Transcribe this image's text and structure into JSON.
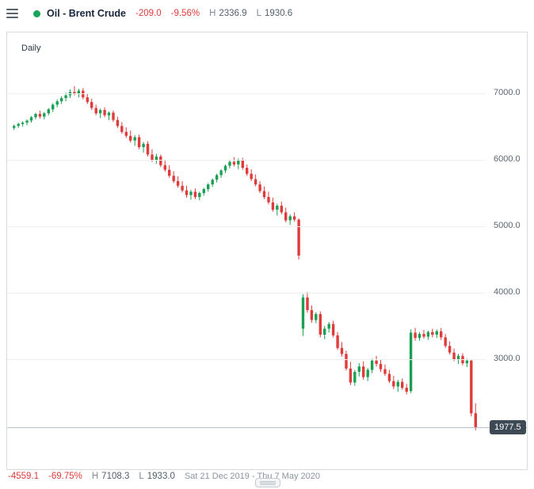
{
  "header": {
    "title": "Oil - Brent Crude",
    "change": "-209.0",
    "change_pct": "-9.56%",
    "high_label": "H",
    "high": "2336.9",
    "low_label": "L",
    "low": "1930.6"
  },
  "chart": {
    "timeframe_label": "Daily",
    "last_price_label": "1977.5",
    "y_axis": {
      "ticks": [
        "7000.0",
        "6000.0",
        "5000.0",
        "4000.0",
        "3000.0"
      ]
    }
  },
  "footer": {
    "change": "-4559.1",
    "change_pct": "-69.75%",
    "high_label": "H",
    "high": "7108.3",
    "low_label": "L",
    "low": "1933.0",
    "date_range": "Sat 21 Dec 2019 - Thu 7 May 2020"
  },
  "colors": {
    "up": "#1aa053",
    "down": "#e03b3b",
    "accent_red_text": "#e03b3b",
    "badge_bg": "#3d4955",
    "status_dot": "#17a558"
  },
  "chart_data": {
    "type": "candlestick",
    "title": "Oil - Brent Crude, Daily",
    "x_range": "Sat 21 Dec 2019 - Thu 7 May 2020",
    "ylim": [
      1900,
      7400
    ],
    "y_ticks": [
      7000,
      6000,
      5000,
      4000,
      3000
    ],
    "range_high": 7108.3,
    "range_low": 1933.0,
    "last_price": 1977.5,
    "candles": [
      [
        6480,
        6530,
        6450,
        6510
      ],
      [
        6510,
        6560,
        6480,
        6540
      ],
      [
        6540,
        6580,
        6500,
        6560
      ],
      [
        6560,
        6610,
        6520,
        6590
      ],
      [
        6590,
        6660,
        6560,
        6640
      ],
      [
        6640,
        6710,
        6610,
        6690
      ],
      [
        6690,
        6740,
        6620,
        6650
      ],
      [
        6650,
        6720,
        6610,
        6700
      ],
      [
        6700,
        6780,
        6670,
        6760
      ],
      [
        6760,
        6850,
        6720,
        6830
      ],
      [
        6830,
        6910,
        6790,
        6880
      ],
      [
        6880,
        6960,
        6840,
        6930
      ],
      [
        6930,
        7010,
        6880,
        6970
      ],
      [
        6970,
        7060,
        6930,
        7020
      ],
      [
        7020,
        7108,
        6970,
        7000
      ],
      [
        7000,
        7070,
        6940,
        7040
      ],
      [
        7040,
        7080,
        6910,
        6940
      ],
      [
        6940,
        6990,
        6840,
        6870
      ],
      [
        6870,
        6920,
        6750,
        6780
      ],
      [
        6780,
        6830,
        6670,
        6700
      ],
      [
        6700,
        6770,
        6630,
        6750
      ],
      [
        6750,
        6790,
        6640,
        6670
      ],
      [
        6670,
        6730,
        6600,
        6710
      ],
      [
        6710,
        6740,
        6570,
        6600
      ],
      [
        6600,
        6650,
        6480,
        6510
      ],
      [
        6510,
        6570,
        6390,
        6420
      ],
      [
        6420,
        6490,
        6330,
        6360
      ],
      [
        6360,
        6440,
        6260,
        6290
      ],
      [
        6290,
        6370,
        6210,
        6340
      ],
      [
        6340,
        6380,
        6160,
        6190
      ],
      [
        6190,
        6270,
        6110,
        6240
      ],
      [
        6240,
        6280,
        6050,
        6080
      ],
      [
        6080,
        6160,
        5970,
        6000
      ],
      [
        6000,
        6090,
        5940,
        6050
      ],
      [
        6050,
        6080,
        5890,
        5920
      ],
      [
        5920,
        5990,
        5820,
        5850
      ],
      [
        5850,
        5920,
        5730,
        5760
      ],
      [
        5760,
        5830,
        5650,
        5680
      ],
      [
        5680,
        5750,
        5580,
        5610
      ],
      [
        5610,
        5680,
        5510,
        5540
      ],
      [
        5540,
        5610,
        5430,
        5470
      ],
      [
        5470,
        5550,
        5400,
        5520
      ],
      [
        5520,
        5570,
        5410,
        5440
      ],
      [
        5440,
        5520,
        5390,
        5500
      ],
      [
        5500,
        5580,
        5460,
        5560
      ],
      [
        5560,
        5650,
        5520,
        5630
      ],
      [
        5630,
        5720,
        5590,
        5700
      ],
      [
        5700,
        5790,
        5660,
        5770
      ],
      [
        5770,
        5860,
        5730,
        5840
      ],
      [
        5840,
        5930,
        5800,
        5910
      ],
      [
        5910,
        6000,
        5870,
        5970
      ],
      [
        5970,
        6040,
        5900,
        5930
      ],
      [
        5930,
        6020,
        5860,
        5990
      ],
      [
        5990,
        6030,
        5850,
        5880
      ],
      [
        5880,
        5930,
        5760,
        5790
      ],
      [
        5790,
        5860,
        5680,
        5710
      ],
      [
        5710,
        5780,
        5600,
        5630
      ],
      [
        5630,
        5680,
        5500,
        5530
      ],
      [
        5530,
        5600,
        5410,
        5440
      ],
      [
        5440,
        5520,
        5330,
        5360
      ],
      [
        5360,
        5430,
        5220,
        5250
      ],
      [
        5250,
        5340,
        5160,
        5310
      ],
      [
        5310,
        5370,
        5180,
        5210
      ],
      [
        5210,
        5280,
        5060,
        5090
      ],
      [
        5090,
        5180,
        5020,
        5150
      ],
      [
        5150,
        5210,
        5070,
        5100
      ],
      [
        5100,
        5120,
        4500,
        4560
      ],
      [
        3460,
        3980,
        3350,
        3930
      ],
      [
        3930,
        4010,
        3700,
        3740
      ],
      [
        3740,
        3810,
        3550,
        3590
      ],
      [
        3590,
        3710,
        3540,
        3680
      ],
      [
        3680,
        3720,
        3330,
        3370
      ],
      [
        3370,
        3500,
        3300,
        3460
      ],
      [
        3460,
        3560,
        3400,
        3530
      ],
      [
        3530,
        3580,
        3330,
        3360
      ],
      [
        3360,
        3410,
        3140,
        3170
      ],
      [
        3170,
        3260,
        3040,
        3080
      ],
      [
        3080,
        3130,
        2830,
        2860
      ],
      [
        2860,
        2960,
        2610,
        2650
      ],
      [
        2650,
        2840,
        2600,
        2810
      ],
      [
        2810,
        2940,
        2740,
        2890
      ],
      [
        2890,
        2970,
        2690,
        2730
      ],
      [
        2730,
        2870,
        2670,
        2840
      ],
      [
        2840,
        3010,
        2790,
        2980
      ],
      [
        2980,
        3050,
        2890,
        2930
      ],
      [
        2930,
        2990,
        2810,
        2850
      ],
      [
        2850,
        2920,
        2750,
        2780
      ],
      [
        2780,
        2840,
        2640,
        2670
      ],
      [
        2670,
        2750,
        2550,
        2590
      ],
      [
        2590,
        2690,
        2510,
        2660
      ],
      [
        2660,
        2710,
        2540,
        2570
      ],
      [
        2570,
        2630,
        2470,
        2510
      ],
      [
        2520,
        3450,
        2490,
        3400
      ],
      [
        3400,
        3470,
        3280,
        3320
      ],
      [
        3320,
        3410,
        3280,
        3380
      ],
      [
        3380,
        3440,
        3310,
        3340
      ],
      [
        3340,
        3430,
        3290,
        3410
      ],
      [
        3410,
        3460,
        3330,
        3370
      ],
      [
        3370,
        3450,
        3320,
        3420
      ],
      [
        3420,
        3470,
        3290,
        3330
      ],
      [
        3330,
        3380,
        3170,
        3200
      ],
      [
        3200,
        3270,
        3070,
        3100
      ],
      [
        3100,
        3160,
        2970,
        3000
      ],
      [
        3000,
        3080,
        2930,
        3050
      ],
      [
        3050,
        3090,
        2910,
        2940
      ],
      [
        2940,
        3010,
        2880,
        2980
      ],
      [
        2980,
        2995,
        2140,
        2186.5
      ],
      [
        2186.5,
        2336.9,
        1930.6,
        1977.5
      ]
    ]
  }
}
